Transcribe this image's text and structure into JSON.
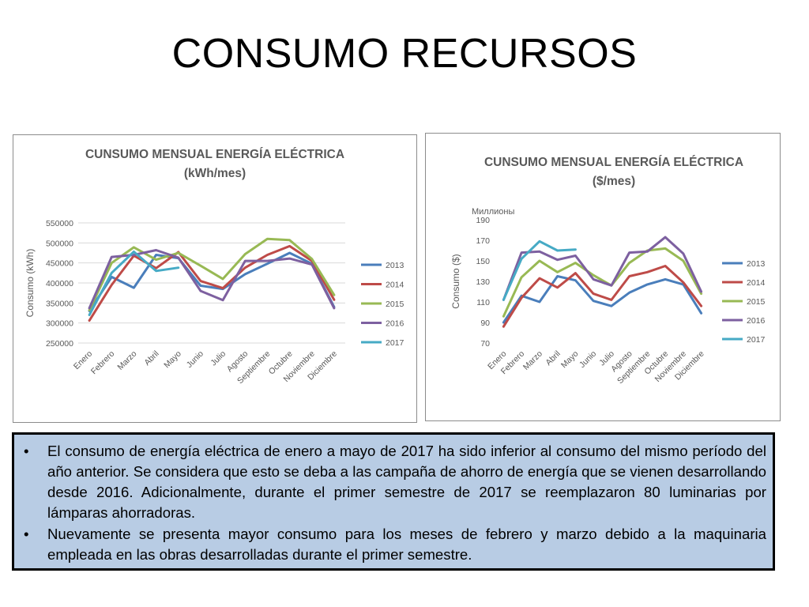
{
  "slide": {
    "title": "CONSUMO RECURSOS"
  },
  "chart_data": [
    {
      "type": "line",
      "title": "CUNSUMO MENSUAL ENERGÍA ELÉCTRICA",
      "subtitle": "(kWh/mes)",
      "ylabel": "Consumo (kWh)",
      "xlabel": "",
      "categories": [
        "Enero",
        "Febrero",
        "Marzo",
        "Abril",
        "Mayo",
        "Junio",
        "Julio",
        "Agosto",
        "Septiembre",
        "Octubre",
        "Noviembre",
        "Diciembre"
      ],
      "ylim": [
        250000,
        550000
      ],
      "yticks": [
        "550000",
        "500000",
        "450000",
        "400000",
        "350000",
        "300000",
        "250000"
      ],
      "grid": true,
      "legend": "right",
      "series": [
        {
          "name": "2013",
          "color": "#4a7ebb",
          "values": [
            330000,
            415000,
            388000,
            470000,
            462000,
            393000,
            385000,
            422000,
            448000,
            475000,
            448000,
            340000
          ]
        },
        {
          "name": "2014",
          "color": "#be4b48",
          "values": [
            306000,
            395000,
            468000,
            437000,
            477000,
            405000,
            387000,
            438000,
            470000,
            492000,
            455000,
            358000
          ]
        },
        {
          "name": "2015",
          "color": "#98b954",
          "values": [
            332000,
            450000,
            489000,
            458000,
            475000,
            443000,
            410000,
            472000,
            510000,
            507000,
            460000,
            370000
          ]
        },
        {
          "name": "2016",
          "color": "#7d60a0",
          "values": [
            337000,
            465000,
            470000,
            482000,
            463000,
            380000,
            357000,
            455000,
            455000,
            461000,
            446000,
            337000
          ]
        },
        {
          "name": "2017",
          "color": "#46aac5",
          "values": [
            320000,
            425000,
            478000,
            430000,
            438000,
            null,
            null,
            null,
            null,
            null,
            null,
            null
          ]
        }
      ]
    },
    {
      "type": "line",
      "title": "CUNSUMO MENSUAL ENERGÍA ELÉCTRICA",
      "subtitle": "($/mes)",
      "ylabel": "Consumo ($)",
      "xlabel": "",
      "unit_label": "Миллионы",
      "categories": [
        "Enero",
        "Febrero",
        "Marzo",
        "Abril",
        "Mayo",
        "Junio",
        "Julio",
        "Agosto",
        "Septiembre",
        "Octubre",
        "Noviembre",
        "Diciembre"
      ],
      "ylim": [
        70,
        190
      ],
      "yticks": [
        "190",
        "170",
        "150",
        "130",
        "110",
        "90",
        "70"
      ],
      "grid": false,
      "legend": "right",
      "series": [
        {
          "name": "2013",
          "color": "#4a7ebb",
          "values": [
            90,
            116,
            110,
            135,
            131,
            111,
            106,
            119,
            127,
            132,
            127,
            99
          ]
        },
        {
          "name": "2014",
          "color": "#be4b48",
          "values": [
            86,
            114,
            133,
            124,
            138,
            118,
            112,
            135,
            139,
            145,
            129,
            106
          ]
        },
        {
          "name": "2015",
          "color": "#98b954",
          "values": [
            96,
            134,
            150,
            139,
            148,
            136,
            126,
            148,
            160,
            162,
            150,
            118
          ]
        },
        {
          "name": "2016",
          "color": "#7d60a0",
          "values": [
            112,
            158,
            159,
            151,
            155,
            132,
            126,
            158,
            159,
            173,
            157,
            120
          ]
        },
        {
          "name": "2017",
          "color": "#46aac5",
          "values": [
            112,
            152,
            169,
            160,
            161,
            null,
            null,
            null,
            null,
            null,
            null,
            null
          ]
        }
      ]
    }
  ],
  "notes": {
    "items": [
      "El consumo de energía eléctrica de enero a mayo de 2017 ha sido inferior al consumo del mismo período del año anterior. Se considera que esto se deba a las campaña de ahorro de energía que se vienen desarrollando desde 2016. Adicionalmente, durante el primer semestre de 2017 se reemplazaron 80 luminarias por lámparas ahorradoras.",
      "Nuevamente se presenta mayor consumo para los meses de febrero y marzo debido a la maquinaria empleada en las obras desarrolladas durante el primer semestre."
    ],
    "bullet": "•"
  }
}
